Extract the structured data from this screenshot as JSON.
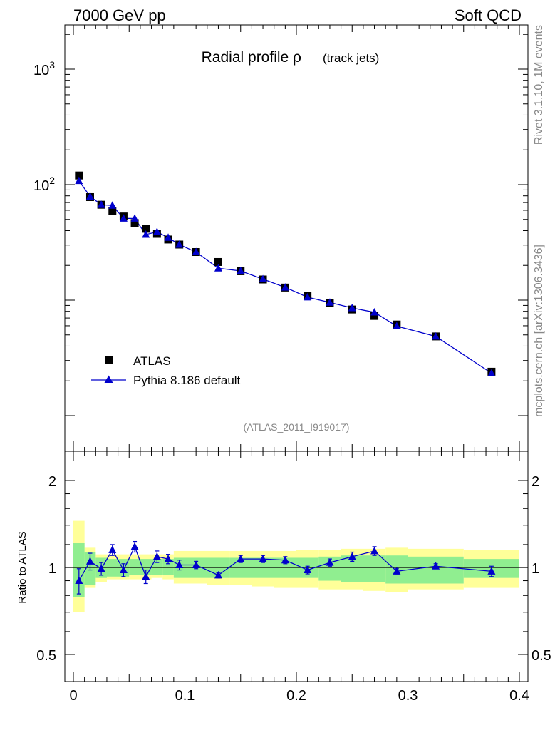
{
  "header": {
    "left": "7000 GeV pp",
    "right": "Soft QCD"
  },
  "side_labels": {
    "rivet": "Rivet 3.1.10,  1M events",
    "mcplots": "mcplots.cern.ch [arXiv:1306.3436]"
  },
  "chart_data": [
    {
      "type": "scatter",
      "title": "Radial profile ρ",
      "subtitle": "(track jets)",
      "analysis_label": "(ATLAS_2011_I919017)",
      "xlim": [
        0,
        0.4
      ],
      "ylim": [
        1,
        2000
      ],
      "y_scale": "log",
      "y_ticks": [
        {
          "value": 1000,
          "label": "10",
          "exp": "3"
        },
        {
          "value": 100,
          "label": "10",
          "exp": "2"
        }
      ],
      "legend_position": "lower-left",
      "series": [
        {
          "name": "ATLAS",
          "marker": "square",
          "color": "#000000",
          "x": [
            0.005,
            0.015,
            0.025,
            0.035,
            0.045,
            0.055,
            0.065,
            0.075,
            0.085,
            0.095,
            0.11,
            0.13,
            0.15,
            0.17,
            0.19,
            0.21,
            0.23,
            0.25,
            0.27,
            0.29,
            0.325,
            0.375
          ],
          "y": [
            120,
            78,
            67,
            59.5,
            53,
            46.5,
            41.5,
            37.5,
            33.5,
            30.3,
            26.1,
            21.4,
            17.8,
            15.1,
            12.85,
            10.9,
            9.5,
            8.3,
            7.3,
            6.15,
            4.85,
            2.4
          ]
        },
        {
          "name": "Pythia 8.186 default",
          "marker": "triangle",
          "color": "#0000cc",
          "line": true,
          "x": [
            0.005,
            0.015,
            0.025,
            0.035,
            0.045,
            0.055,
            0.065,
            0.075,
            0.085,
            0.095,
            0.11,
            0.13,
            0.15,
            0.17,
            0.19,
            0.21,
            0.23,
            0.25,
            0.27,
            0.29,
            0.325,
            0.375
          ],
          "y": [
            108,
            79,
            67,
            66,
            51,
            51,
            37,
            39,
            34.8,
            30.3,
            26.1,
            18.9,
            17.9,
            15.2,
            12.9,
            10.6,
            9.55,
            8.55,
            7.85,
            5.95,
            4.85,
            2.33
          ]
        }
      ]
    },
    {
      "type": "scatter",
      "ylabel": "Ratio to ATLAS",
      "xlim": [
        0,
        0.4
      ],
      "ylim": [
        0.42,
        2.35
      ],
      "y_scale": "log",
      "x_ticks": [
        {
          "value": 0,
          "label": "0"
        },
        {
          "value": 0.1,
          "label": "0.1"
        },
        {
          "value": 0.2,
          "label": "0.2"
        },
        {
          "value": 0.3,
          "label": "0.3"
        },
        {
          "value": 0.4,
          "label": "0.4"
        }
      ],
      "y_ticks": [
        {
          "value": 2,
          "label": "2"
        },
        {
          "value": 1,
          "label": "1"
        },
        {
          "value": 0.5,
          "label": "0.5"
        }
      ],
      "bands": {
        "bin_edges": [
          0,
          0.01,
          0.02,
          0.03,
          0.04,
          0.05,
          0.06,
          0.07,
          0.08,
          0.09,
          0.1,
          0.12,
          0.14,
          0.16,
          0.18,
          0.2,
          0.22,
          0.24,
          0.26,
          0.28,
          0.3,
          0.35,
          0.4
        ],
        "stat_color": "#90ee90",
        "syst_color": "#ffff99",
        "stat_lo": [
          0.79,
          0.87,
          0.92,
          0.93,
          0.93,
          0.94,
          0.94,
          0.94,
          0.94,
          0.92,
          0.92,
          0.92,
          0.92,
          0.92,
          0.92,
          0.92,
          0.9,
          0.89,
          0.89,
          0.88,
          0.88,
          0.92
        ],
        "stat_hi": [
          1.22,
          1.13,
          1.08,
          1.07,
          1.07,
          1.07,
          1.07,
          1.07,
          1.07,
          1.08,
          1.08,
          1.08,
          1.08,
          1.08,
          1.08,
          1.08,
          1.09,
          1.1,
          1.1,
          1.1,
          1.09,
          1.07
        ],
        "syst_lo": [
          0.7,
          0.85,
          0.89,
          0.91,
          0.91,
          0.91,
          0.91,
          0.92,
          0.91,
          0.88,
          0.88,
          0.87,
          0.87,
          0.86,
          0.85,
          0.85,
          0.84,
          0.84,
          0.83,
          0.82,
          0.84,
          0.85
        ],
        "syst_hi": [
          1.45,
          1.17,
          1.11,
          1.11,
          1.11,
          1.11,
          1.11,
          1.11,
          1.11,
          1.14,
          1.14,
          1.14,
          1.14,
          1.14,
          1.14,
          1.15,
          1.15,
          1.16,
          1.16,
          1.17,
          1.16,
          1.15
        ]
      },
      "series": [
        {
          "name": "Pythia 8.186 default",
          "marker": "triangle",
          "color": "#0000cc",
          "x": [
            0.005,
            0.015,
            0.025,
            0.035,
            0.045,
            0.055,
            0.065,
            0.075,
            0.085,
            0.095,
            0.11,
            0.13,
            0.15,
            0.17,
            0.19,
            0.21,
            0.23,
            0.25,
            0.27,
            0.29,
            0.325,
            0.375
          ],
          "y": [
            0.9,
            1.05,
            0.99,
            1.15,
            0.98,
            1.18,
            0.93,
            1.09,
            1.07,
            1.02,
            1.02,
            0.94,
            1.07,
            1.07,
            1.06,
            0.98,
            1.04,
            1.09,
            1.14,
            0.97,
            1.01,
            0.97
          ],
          "err": [
            0.09,
            0.07,
            0.05,
            0.05,
            0.05,
            0.05,
            0.05,
            0.05,
            0.04,
            0.04,
            0.03,
            0.02,
            0.03,
            0.03,
            0.03,
            0.03,
            0.03,
            0.04,
            0.04,
            0.02,
            0.02,
            0.04
          ]
        }
      ],
      "reference_line": 1
    }
  ]
}
